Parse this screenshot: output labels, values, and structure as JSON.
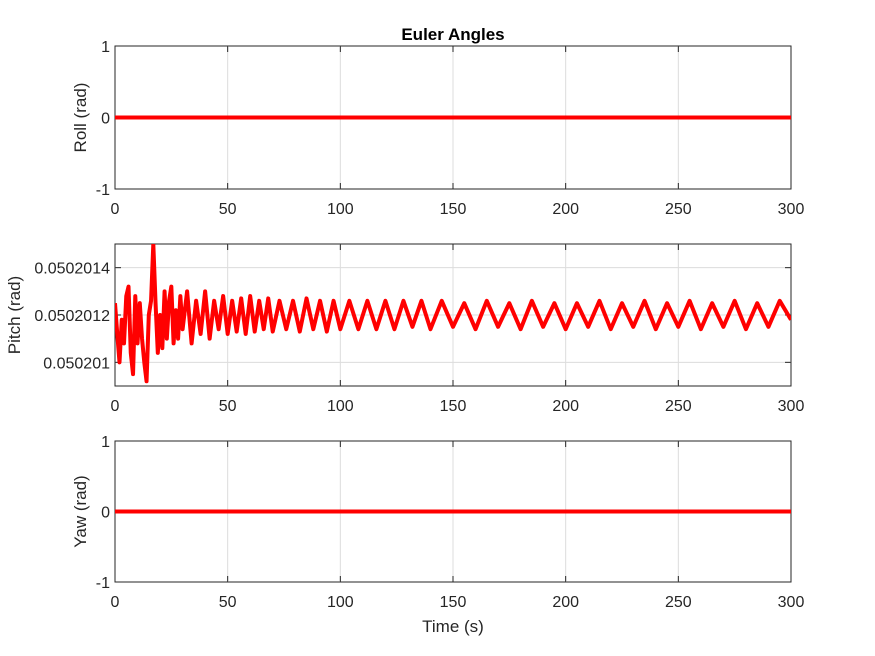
{
  "chart_data": [
    {
      "type": "line",
      "title": "Euler Angles",
      "ylabel": "Roll (rad)",
      "xlabel": "",
      "xlim": [
        0,
        300
      ],
      "ylim": [
        -1,
        1
      ],
      "xticks": [
        0,
        50,
        100,
        150,
        200,
        250,
        300
      ],
      "yticks": [
        -1,
        0,
        1
      ],
      "ytick_labels": [
        "-1",
        "0",
        "1"
      ],
      "grid": true,
      "line_color": "#ff0000",
      "series": [
        {
          "x": [
            0,
            300
          ],
          "y": [
            0,
            0
          ]
        }
      ]
    },
    {
      "type": "line",
      "title": "",
      "ylabel": "Pitch (rad)",
      "xlabel": "",
      "xlim": [
        0,
        300
      ],
      "ylim": [
        0.0502009,
        0.0502015
      ],
      "xticks": [
        0,
        50,
        100,
        150,
        200,
        250,
        300
      ],
      "yticks": [
        0.050201,
        0.0502012,
        0.0502014
      ],
      "ytick_labels": [
        "0.050201",
        "0.0502012",
        "0.0502014"
      ],
      "grid": true,
      "line_color": "#ff0000",
      "series": [
        {
          "x": [
            0,
            1,
            2,
            3,
            4,
            5,
            6,
            7,
            8,
            9,
            10,
            11,
            12,
            13,
            14,
            15,
            16,
            17,
            18,
            19,
            20,
            21,
            22,
            23,
            24,
            25,
            26,
            27,
            28,
            29,
            30,
            32,
            34,
            36,
            38,
            40,
            42,
            44,
            46,
            48,
            50,
            52,
            54,
            56,
            58,
            60,
            62,
            64,
            66,
            68,
            70,
            73,
            76,
            79,
            82,
            85,
            88,
            91,
            94,
            97,
            100,
            104,
            108,
            112,
            116,
            120,
            124,
            128,
            132,
            136,
            140,
            145,
            150,
            155,
            160,
            165,
            170,
            175,
            180,
            185,
            190,
            195,
            200,
            205,
            210,
            215,
            220,
            225,
            230,
            235,
            240,
            245,
            250,
            255,
            260,
            265,
            270,
            275,
            280,
            285,
            290,
            295,
            300
          ],
          "y": [
            0.05020125,
            0.05020112,
            0.050201,
            0.05020118,
            0.05020108,
            0.05020128,
            0.05020132,
            0.05020104,
            0.05020095,
            0.05020128,
            0.05020108,
            0.05020125,
            0.0502011,
            0.050201,
            0.05020092,
            0.0502012,
            0.05020126,
            0.0502015,
            0.05020125,
            0.05020104,
            0.0502012,
            0.05020106,
            0.0502013,
            0.0502011,
            0.05020126,
            0.05020132,
            0.05020108,
            0.05020122,
            0.0502011,
            0.05020128,
            0.05020114,
            0.0502013,
            0.05020108,
            0.05020126,
            0.05020112,
            0.0502013,
            0.0502011,
            0.05020126,
            0.05020114,
            0.05020128,
            0.05020112,
            0.05020126,
            0.05020113,
            0.05020127,
            0.05020112,
            0.05020128,
            0.05020113,
            0.05020126,
            0.05020114,
            0.05020127,
            0.05020113,
            0.05020126,
            0.05020114,
            0.05020126,
            0.05020113,
            0.05020127,
            0.05020114,
            0.05020126,
            0.05020113,
            0.05020126,
            0.05020114,
            0.05020126,
            0.05020114,
            0.05020126,
            0.05020114,
            0.05020126,
            0.05020114,
            0.05020126,
            0.05020115,
            0.05020126,
            0.05020114,
            0.05020126,
            0.05020115,
            0.05020125,
            0.05020114,
            0.05020126,
            0.05020115,
            0.05020125,
            0.05020114,
            0.05020126,
            0.05020115,
            0.05020125,
            0.05020114,
            0.05020125,
            0.05020115,
            0.05020126,
            0.05020114,
            0.05020125,
            0.05020115,
            0.05020126,
            0.05020114,
            0.05020125,
            0.05020115,
            0.05020126,
            0.05020114,
            0.05020125,
            0.05020115,
            0.05020126,
            0.05020114,
            0.05020125,
            0.05020115,
            0.05020126,
            0.05020118
          ]
        }
      ]
    },
    {
      "type": "line",
      "title": "",
      "ylabel": "Yaw (rad)",
      "xlabel": "Time (s)",
      "xlim": [
        0,
        300
      ],
      "ylim": [
        -1,
        1
      ],
      "xticks": [
        0,
        50,
        100,
        150,
        200,
        250,
        300
      ],
      "yticks": [
        -1,
        0,
        1
      ],
      "ytick_labels": [
        "-1",
        "0",
        "1"
      ],
      "grid": true,
      "line_color": "#ff0000",
      "series": [
        {
          "x": [
            0,
            300
          ],
          "y": [
            0,
            0
          ]
        }
      ]
    }
  ]
}
